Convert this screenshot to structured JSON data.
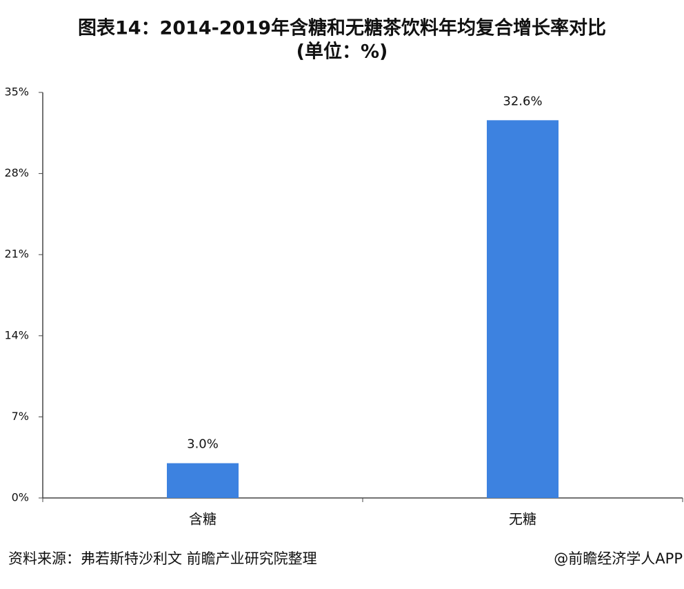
{
  "chart_data": {
    "type": "bar",
    "title": "图表14：2014-2019年含糖和无糖茶饮料年均复合增长率对比",
    "subtitle": "(单位：%)",
    "categories": [
      "含糖",
      "无糖"
    ],
    "values": [
      3.0,
      32.6
    ],
    "value_labels": [
      "3.0%",
      "32.6%"
    ],
    "color": "#3d82e0",
    "ylim": [
      0,
      35
    ],
    "yticks": [
      {
        "value": 0,
        "label": "0%"
      },
      {
        "value": 7,
        "label": "7%"
      },
      {
        "value": 14,
        "label": "14%"
      },
      {
        "value": 21,
        "label": "21%"
      },
      {
        "value": 28,
        "label": "28%"
      },
      {
        "value": 35,
        "label": "35%"
      }
    ],
    "grid": false,
    "source": "资料来源：弗若斯特沙利文 前瞻产业研究院整理",
    "credit": "@前瞻经济学人APP"
  }
}
